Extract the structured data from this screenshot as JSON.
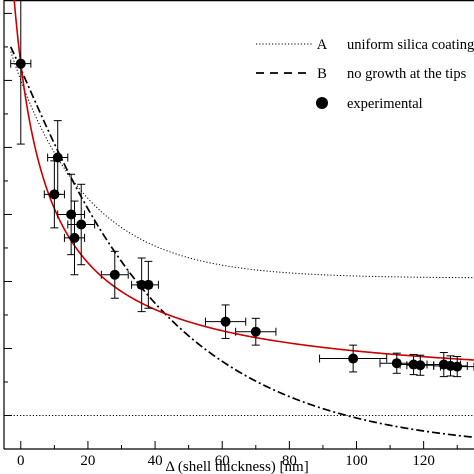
{
  "chart_data": {
    "type": "scatter",
    "xlabel": "Δ  (shell thickness) [nm]",
    "ylabel": "",
    "xlim": [
      -5,
      135
    ],
    "ylim": [
      0.5,
      7.2
    ],
    "x_ticks": [
      0,
      20,
      40,
      60,
      80,
      100,
      120
    ],
    "grid": false,
    "legend_position": "top-right",
    "legend": [
      {
        "key": "A",
        "label": "uniform silica coating",
        "style": "dotted"
      },
      {
        "key": "B",
        "label": "no growth at the tips",
        "style": "dash-dot"
      },
      {
        "key": "",
        "label": "experimental",
        "style": "marker"
      }
    ],
    "series": [
      {
        "name": "experimental",
        "points": [
          {
            "x": 0,
            "y": 6.25,
            "xerr": 3,
            "yerr": 1.2
          },
          {
            "x": 10,
            "y": 4.3,
            "xerr": 3,
            "yerr": 0.5
          },
          {
            "x": 11,
            "y": 4.85,
            "xerr": 3,
            "yerr": 0.55
          },
          {
            "x": 15,
            "y": 4.0,
            "xerr": 4,
            "yerr": 0.6
          },
          {
            "x": 16,
            "y": 3.65,
            "xerr": 3,
            "yerr": 0.55
          },
          {
            "x": 18,
            "y": 3.85,
            "xerr": 4,
            "yerr": 0.6
          },
          {
            "x": 28,
            "y": 3.1,
            "xerr": 4,
            "yerr": 0.35
          },
          {
            "x": 36,
            "y": 2.95,
            "xerr": 3,
            "yerr": 0.4
          },
          {
            "x": 38,
            "y": 2.95,
            "xerr": 3,
            "yerr": 0.35
          },
          {
            "x": 61,
            "y": 2.4,
            "xerr": 6,
            "yerr": 0.25
          },
          {
            "x": 70,
            "y": 2.25,
            "xerr": 6,
            "yerr": 0.2
          },
          {
            "x": 99,
            "y": 1.85,
            "xerr": 10,
            "yerr": 0.2
          },
          {
            "x": 112,
            "y": 1.78,
            "xerr": 5,
            "yerr": 0.15
          },
          {
            "x": 117,
            "y": 1.76,
            "xerr": 4,
            "yerr": 0.15
          },
          {
            "x": 119,
            "y": 1.75,
            "xerr": 4,
            "yerr": 0.15
          },
          {
            "x": 126,
            "y": 1.76,
            "xerr": 5,
            "yerr": 0.18
          },
          {
            "x": 128,
            "y": 1.74,
            "xerr": 5,
            "yerr": 0.15
          },
          {
            "x": 130,
            "y": 1.73,
            "xerr": 5,
            "yerr": 0.15
          }
        ]
      }
    ],
    "curves": {
      "A": {
        "style": "dotted",
        "color": "#000000"
      },
      "B": {
        "style": "dash-dot",
        "color": "#000000"
      },
      "fit": {
        "style": "solid",
        "color": "#cc0000"
      }
    },
    "reference_line_y": 1.0
  }
}
